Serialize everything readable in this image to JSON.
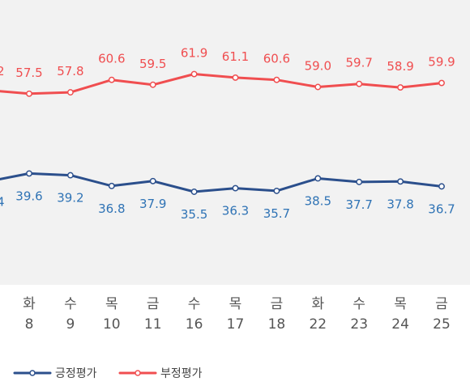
{
  "chart_data": {
    "type": "line",
    "categories": [
      {
        "day": "화",
        "date": "8"
      },
      {
        "day": "수",
        "date": "9"
      },
      {
        "day": "목",
        "date": "10"
      },
      {
        "day": "금",
        "date": "11"
      },
      {
        "day": "수",
        "date": "16"
      },
      {
        "day": "목",
        "date": "17"
      },
      {
        "day": "금",
        "date": "18"
      },
      {
        "day": "화",
        "date": "22"
      },
      {
        "day": "수",
        "date": "23"
      },
      {
        "day": "목",
        "date": "24"
      },
      {
        "day": "금",
        "date": "25"
      }
    ],
    "series": [
      {
        "name": "긍정평가",
        "color": "#2b4f8c",
        "label_color": "#2f73b5",
        "leading_label": "4",
        "values": [
          39.6,
          39.2,
          36.8,
          37.9,
          35.5,
          36.3,
          35.7,
          38.5,
          37.7,
          37.8,
          36.7
        ]
      },
      {
        "name": "부정평가",
        "color": "#f04e50",
        "label_color": "#f04e50",
        "leading_label": "2",
        "values": [
          57.5,
          57.8,
          60.6,
          59.5,
          61.9,
          61.1,
          60.6,
          59.0,
          59.7,
          58.9,
          59.9
        ]
      }
    ],
    "legend_position": "bottom-left",
    "grid": false,
    "plot_background": "#f2f2f2"
  }
}
